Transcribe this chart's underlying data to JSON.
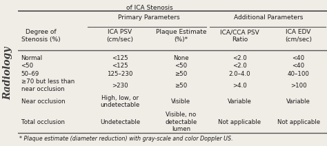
{
  "title_top": "of ICA Stenosis",
  "header_group1": "Primary Parameters",
  "header_group2": "Additional Parameters",
  "col_headers": [
    "Degree of\nStenosis (%)",
    "ICA PSV\n(cm/sec)",
    "Plaque Estimate\n(%)*",
    "ICA/CCA PSV\nRatio",
    "ICA EDV\n(cm/sec)"
  ],
  "rows": [
    [
      "Normal",
      "<125",
      "None",
      "<2.0",
      "<40"
    ],
    [
      "<50",
      "<125",
      "<50",
      "<2.0",
      "<40"
    ],
    [
      "50–69",
      "125–230",
      "≥50",
      "2.0–4.0",
      "40–100"
    ],
    [
      "≥70 but less than\nnear occlusion",
      ">230",
      "≥50",
      ">4.0",
      ">100"
    ],
    [
      "Near occlusion",
      "High, low, or\nundetectable",
      "Visible",
      "Variable",
      "Variable"
    ],
    [
      "Total occlusion",
      "Undetectable",
      "Visible, no\ndetectable\nlumen",
      "Not applicable",
      "Not applicable"
    ]
  ],
  "footnote": "* Plaque estimate (diameter reduction) with gray-scale and color Doppler US.",
  "bg_color": "#f0ece6",
  "text_color": "#1a1a1a",
  "line_color": "#555555",
  "sidebar_text": "Radiology",
  "header_fontsize": 6.5,
  "cell_fontsize": 6.2,
  "footnote_fontsize": 5.8,
  "title_fontsize": 6.5
}
